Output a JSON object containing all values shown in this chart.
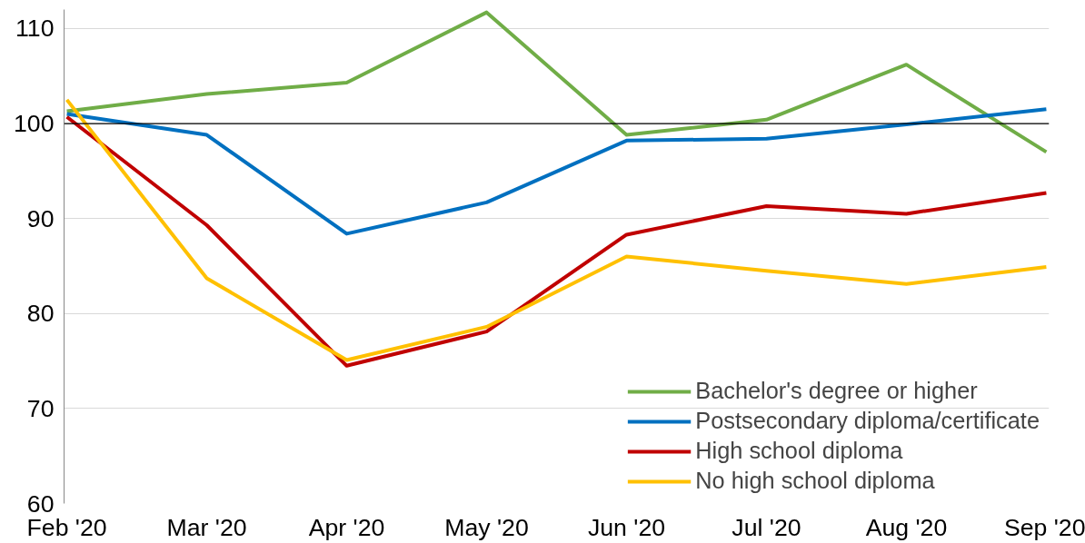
{
  "chart_data": {
    "type": "line",
    "categories": [
      "Feb '20",
      "Mar '20",
      "Apr '20",
      "May '20",
      "Jun '20",
      "Jul '20",
      "Aug '20",
      "Sep '20"
    ],
    "series": [
      {
        "name": "Bachelor's degree or higher",
        "color": "#70ad47",
        "values": [
          101.3,
          103.1,
          104.3,
          111.7,
          98.8,
          100.4,
          106.2,
          97.0
        ]
      },
      {
        "name": "Postsecondary diploma/certificate",
        "color": "#0070c0",
        "values": [
          101.0,
          98.8,
          88.4,
          91.7,
          98.2,
          98.4,
          99.9,
          101.5
        ]
      },
      {
        "name": "High school diploma",
        "color": "#c00000",
        "values": [
          100.7,
          89.3,
          74.5,
          78.1,
          88.3,
          91.3,
          90.5,
          92.7
        ]
      },
      {
        "name": "No high school diploma",
        "color": "#ffc000",
        "values": [
          102.5,
          83.7,
          75.1,
          78.6,
          86.0,
          84.5,
          83.1,
          84.9
        ]
      }
    ],
    "ylim": [
      60,
      112
    ],
    "yticks": [
      60,
      70,
      80,
      90,
      100,
      110
    ],
    "ref_lines": [
      {
        "axis": "y",
        "value": 100,
        "color": "#000000"
      }
    ],
    "grid": "y",
    "legend": "bottom right",
    "line_style": "solid",
    "marker": "none"
  }
}
